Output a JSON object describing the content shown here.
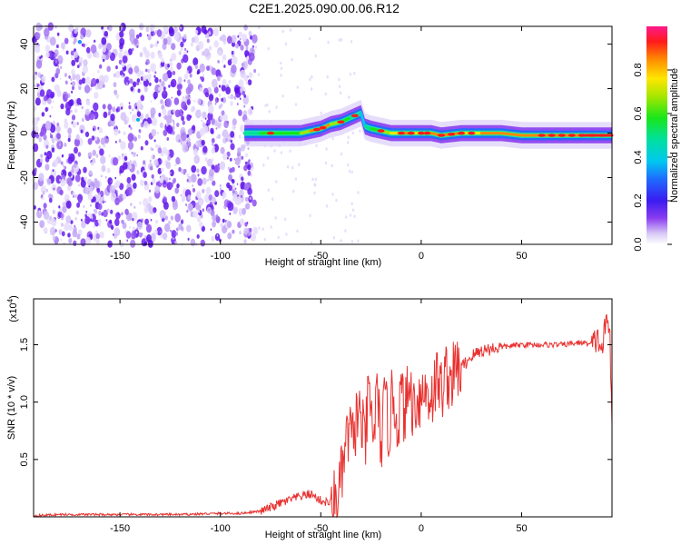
{
  "title": "C2E1.2025.090.00.06.R12",
  "chart_data": [
    {
      "type": "heatmap",
      "xlabel": "Height of straight line (km)",
      "ylabel": "Frequency (Hz)",
      "xlim": [
        -193,
        95
      ],
      "ylim": [
        -50,
        48
      ],
      "xticks": [
        -150,
        -100,
        -50,
        0,
        50
      ],
      "yticks": [
        -40,
        -20,
        0,
        20,
        40
      ],
      "colorbar": {
        "label": "Normalized spectral amplitude",
        "range": [
          0,
          1
        ],
        "ticks": [
          0.0,
          0.2,
          0.4,
          0.6,
          0.8
        ],
        "tick_labels": [
          "0.0",
          "0.2",
          "0.4",
          "0.6",
          "0.8"
        ],
        "colormap": "rainbow"
      },
      "noise_region_x": [
        -193,
        -87
      ],
      "ridge": {
        "x": [
          -88,
          -80,
          -75,
          -70,
          -60,
          -55,
          -50,
          -45,
          -40,
          -35,
          -30,
          -28,
          -25,
          -20,
          -15,
          -10,
          -5,
          0,
          5,
          10,
          20,
          30,
          40,
          50,
          60,
          70,
          80,
          90,
          95
        ],
        "freq": [
          0,
          0,
          0,
          0,
          0,
          1,
          2,
          4,
          5,
          7,
          9,
          3,
          2,
          1,
          0,
          0,
          0,
          0,
          0,
          -1,
          0,
          0,
          0,
          -1,
          -1,
          -1,
          -1,
          -1,
          -1
        ],
        "amplitude": [
          0.35,
          0.5,
          0.55,
          0.5,
          0.6,
          0.75,
          0.85,
          0.7,
          0.6,
          0.55,
          0.4,
          0.35,
          0.45,
          0.6,
          0.7,
          0.8,
          0.75,
          0.7,
          0.8,
          0.8,
          0.75,
          0.75,
          0.8,
          0.8,
          0.8,
          0.8,
          0.85,
          0.9,
          0.9
        ],
        "width_hz": 2
      }
    },
    {
      "type": "line",
      "xlabel": "Height of straight line (km)",
      "ylabel": "SNR (10 * v/v)",
      "y_exponent_label": "(x10",
      "y_exponent_power": "4",
      "xlim": [
        -193,
        95
      ],
      "ylim": [
        0,
        1.9
      ],
      "xticks": [
        -150,
        -100,
        -50,
        0,
        50
      ],
      "yticks": [
        0.5,
        1.0,
        1.5
      ],
      "ytick_labels": [
        "0.5",
        "1.0",
        "1.5"
      ],
      "line_color": "#e8312f",
      "series": [
        {
          "x": [
            -193,
            -180,
            -150,
            -120,
            -100,
            -90,
            -85,
            -80,
            -75,
            -70,
            -65,
            -60,
            -55,
            -50,
            -45,
            -42,
            -40,
            -38,
            -36,
            -34,
            -32,
            -30,
            -28,
            -26,
            -24,
            -22,
            -20,
            -18,
            -16,
            -14,
            -12,
            -10,
            -8,
            -6,
            -4,
            -2,
            0,
            2,
            5,
            8,
            10,
            12,
            15,
            18,
            20,
            25,
            30,
            40,
            50,
            60,
            70,
            80,
            85,
            88,
            90,
            92,
            94,
            95
          ],
          "values": [
            0.01,
            0.02,
            0.02,
            0.02,
            0.03,
            0.03,
            0.04,
            0.05,
            0.08,
            0.12,
            0.15,
            0.18,
            0.2,
            0.14,
            0.12,
            0.15,
            0.3,
            0.55,
            0.75,
            0.65,
            0.9,
            0.85,
            0.6,
            1.1,
            0.7,
            1.05,
            0.65,
            1.0,
            0.75,
            1.1,
            0.8,
            1.05,
            0.9,
            1.15,
            0.95,
            1.05,
            1.05,
            1.1,
            1.05,
            1.2,
            1.1,
            1.25,
            1.2,
            1.3,
            1.3,
            1.4,
            1.45,
            1.48,
            1.5,
            1.5,
            1.5,
            1.52,
            1.5,
            1.55,
            1.45,
            1.7,
            1.6,
            0.8
          ]
        }
      ]
    }
  ]
}
